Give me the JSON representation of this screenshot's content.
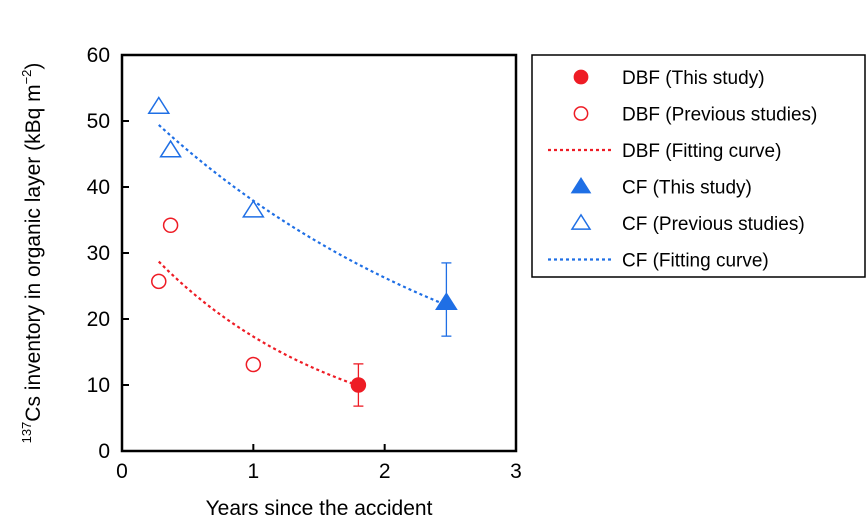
{
  "chart_data": {
    "type": "scatter",
    "title": "",
    "xlabel": "Years since the accident",
    "ylabel": {
      "isotope_mass": "137",
      "main": "Cs inventory in organic layer (kBq m",
      "exp": "−2",
      "close": ")"
    },
    "xlim": [
      0,
      3
    ],
    "ylim": [
      0,
      60
    ],
    "x_ticks": [
      "0",
      "1",
      "2",
      "3"
    ],
    "y_ticks": [
      "0",
      "10",
      "20",
      "30",
      "40",
      "50",
      "60"
    ],
    "legend_position": "right",
    "colors": {
      "dbf": "#ee1c25",
      "cf": "#1f6fe5"
    },
    "series": [
      {
        "name": "DBF (This study)",
        "key": "dbf_this",
        "marker": "filled-circle",
        "points": [
          {
            "x": 1.8,
            "y": 10,
            "err_low": 6.8,
            "err_high": 13.2
          }
        ]
      },
      {
        "name": "DBF (Previous studies)",
        "key": "dbf_prev",
        "marker": "open-circle",
        "points": [
          {
            "x": 0.28,
            "y": 25.7
          },
          {
            "x": 0.37,
            "y": 34.2
          },
          {
            "x": 1.0,
            "y": 13.1
          }
        ]
      },
      {
        "name": "DBF (Fitting curve)",
        "key": "dbf_fit",
        "marker": "dotted-line",
        "curve": {
          "x_start": 0.28,
          "x_end": 1.8,
          "y_start": 28.7,
          "y_end": 9.9
        }
      },
      {
        "name": "CF (This study)",
        "key": "cf_this",
        "marker": "filled-triangle",
        "points": [
          {
            "x": 2.47,
            "y": 22.5,
            "err_low": 17.4,
            "err_high": 28.5
          }
        ]
      },
      {
        "name": "CF (Previous studies)",
        "key": "cf_prev",
        "marker": "open-triangle",
        "points": [
          {
            "x": 0.28,
            "y": 52.2
          },
          {
            "x": 0.37,
            "y": 45.6
          },
          {
            "x": 1.0,
            "y": 36.5
          }
        ]
      },
      {
        "name": "CF (Fitting curve)",
        "key": "cf_fit",
        "marker": "dotted-line",
        "curve": {
          "x_start": 0.28,
          "x_end": 2.47,
          "y_start": 49.4,
          "y_end": 22.1
        }
      }
    ]
  }
}
